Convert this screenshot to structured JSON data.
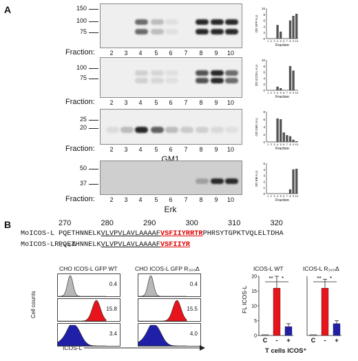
{
  "panel_a": {
    "letter": "A",
    "fraction_label": "Fraction:",
    "fractions": [
      "2",
      "3",
      "4",
      "5",
      "6",
      "7",
      "8",
      "9",
      "10"
    ],
    "blots": [
      {
        "name": "GFP",
        "mw": [
          "150",
          "100",
          "75"
        ],
        "ylabel": "OD GFP A.U.",
        "ymax": 10,
        "yticks": [
          "0",
          "2",
          "4",
          "6",
          "8",
          "10"
        ],
        "bar_values": [
          0,
          0,
          0,
          4.5,
          2.3,
          0.1,
          0,
          6,
          7.5,
          8.2
        ],
        "band_intensity": [
          0,
          0,
          0.75,
          0.35,
          0.05,
          0,
          1,
          1,
          1
        ]
      },
      {
        "name": "ICOS-L",
        "mw": [
          "100",
          "75"
        ],
        "ylabel": "OD ICOS-L A.U.",
        "ymax": 10,
        "yticks": [
          "0",
          "2",
          "4",
          "6",
          "8",
          "10"
        ],
        "bar_values": [
          0,
          0,
          0,
          1.2,
          0.7,
          0,
          0,
          8,
          6.5,
          0
        ],
        "band_intensity": [
          0,
          0,
          0.2,
          0.15,
          0.05,
          0,
          0.85,
          1,
          0.75
        ]
      },
      {
        "name": "GM1",
        "mw": [
          "25",
          "20"
        ],
        "ylabel": "OD GM1 A.U.",
        "ymax": 8,
        "yticks": [
          "0",
          "2",
          "4",
          "6",
          "8"
        ],
        "bar_values": [
          0,
          0,
          0,
          6.2,
          6.0,
          2.5,
          1.8,
          1.5,
          0.6,
          0.2
        ],
        "band_intensity": [
          0.1,
          0.35,
          1,
          0.8,
          0.35,
          0.25,
          0.2,
          0.12,
          0.05
        ]
      },
      {
        "name": "Erk",
        "mw": [
          "50",
          "37"
        ],
        "ylabel": "OD Erk A.U.",
        "ymax": 5,
        "yticks": [
          "0",
          "1",
          "2",
          "3",
          "4",
          "5"
        ],
        "bar_values": [
          0,
          0,
          0,
          0,
          0,
          0,
          0,
          0.7,
          4.0,
          4.1
        ],
        "band_intensity": [
          0,
          0,
          0,
          0,
          0,
          0,
          0.45,
          1,
          1
        ]
      }
    ],
    "mini_xlabel": "Fraction",
    "mini_ticks": [
      "1",
      "2",
      "3",
      "4",
      "5",
      "6",
      "7",
      "8",
      "9",
      "10"
    ]
  },
  "panel_b": {
    "letter": "B",
    "ruler": [
      "270",
      "280",
      "290",
      "300",
      "310",
      "320"
    ],
    "seq1_name": "MoICOS-L",
    "seq1_plain": "PQETHNNELK",
    "seq1_ul": "VLVPVLAVLAAAAF",
    "seq1_red": "VSFIIYRRTR",
    "seq1_tail": "PHRSYTGPKTVQLELTDHA",
    "seq2_name": "MoICOS-LR₃₀₀Δ",
    "seq2_plain": "PQETHNNELK",
    "seq2_ul": "VLVPVLAVLAAAAF",
    "seq2_red": "VSFIIYR",
    "flow_wt_title": "CHO ICOS-L GFP WT",
    "flow_r_title": "CHO ICOS-L GFP  R₃₀₀Δ",
    "flow_wt_values": [
      "0.4",
      "15.8",
      "3.4"
    ],
    "flow_r_values": [
      "0.4",
      "15.5",
      "4.0"
    ],
    "flow_ylabel": "Cell counts",
    "flow_xlabel": "ICOS-L",
    "bar_wt_title": "ICOS-L WT",
    "bar_r_title": "ICOS-L R₃₀₀Δ",
    "bar_ylabel": "FL ICOS-L",
    "bar_yticks": [
      "0",
      "5",
      "10",
      "15",
      "20"
    ],
    "bar_xcats": [
      "C",
      "-",
      "+"
    ],
    "bar_xlabel": "T cells ICOS⁺",
    "sig_star2": "**",
    "sig_star1": "*",
    "colors": {
      "grey": "#b8b8b8",
      "red": "#e8141b",
      "blue": "#1f1fa8"
    }
  },
  "chart_data": [
    {
      "type": "bar",
      "title": "",
      "ylabel": "OD GFP A.U.",
      "xlabel": "Fraction",
      "categories": [
        "1",
        "2",
        "3",
        "4",
        "5",
        "6",
        "7",
        "8",
        "9",
        "10"
      ],
      "values": [
        0,
        0,
        0,
        4.5,
        2.3,
        0.1,
        0,
        6,
        7.5,
        8.2
      ],
      "ylim": [
        0,
        10
      ]
    },
    {
      "type": "bar",
      "title": "",
      "ylabel": "OD ICOS-L A.U.",
      "xlabel": "Fraction",
      "categories": [
        "1",
        "2",
        "3",
        "4",
        "5",
        "6",
        "7",
        "8",
        "9",
        "10"
      ],
      "values": [
        0,
        0,
        0,
        1.2,
        0.7,
        0,
        0,
        8,
        6.5,
        0
      ],
      "ylim": [
        0,
        10
      ]
    },
    {
      "type": "bar",
      "title": "",
      "ylabel": "OD GM1 A.U.",
      "xlabel": "Fraction",
      "categories": [
        "1",
        "2",
        "3",
        "4",
        "5",
        "6",
        "7",
        "8",
        "9",
        "10"
      ],
      "values": [
        0,
        0,
        0,
        6.2,
        6.0,
        2.5,
        1.8,
        1.5,
        0.6,
        0.2
      ],
      "ylim": [
        0,
        8
      ]
    },
    {
      "type": "bar",
      "title": "",
      "ylabel": "OD Erk A.U.",
      "xlabel": "Fraction",
      "categories": [
        "1",
        "2",
        "3",
        "4",
        "5",
        "6",
        "7",
        "8",
        "9",
        "10"
      ],
      "values": [
        0,
        0,
        0,
        0,
        0,
        0,
        0,
        0.7,
        4.0,
        4.1
      ],
      "ylim": [
        0,
        5
      ]
    },
    {
      "type": "bar",
      "title": "ICOS-L WT",
      "ylabel": "FL ICOS-L",
      "xlabel": "T cells ICOS⁺",
      "categories": [
        "C",
        "-",
        "+"
      ],
      "values": [
        0.3,
        16,
        3
      ],
      "errors": [
        0,
        4,
        1
      ],
      "ylim": [
        0,
        20
      ]
    },
    {
      "type": "bar",
      "title": "ICOS-L R₃₀₀Δ",
      "ylabel": "FL ICOS-L",
      "xlabel": "T cells ICOS⁺",
      "categories": [
        "C",
        "-",
        "+"
      ],
      "values": [
        0.3,
        16,
        4
      ],
      "errors": [
        0,
        3,
        1
      ],
      "ylim": [
        0,
        20
      ]
    }
  ]
}
